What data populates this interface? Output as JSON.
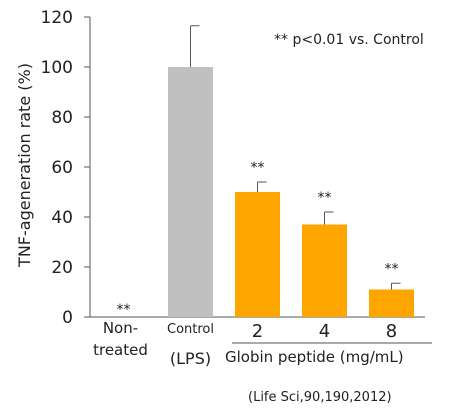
{
  "chart_data": {
    "type": "bar",
    "ylabel": "TNF-ageneration rate (%)",
    "ylim": [
      0,
      120
    ],
    "yticks": [
      "0",
      "20",
      "40",
      "60",
      "80",
      "100",
      "120"
    ],
    "grid": false,
    "note": "** p<0.01 vs. Control",
    "citation": "(Life Sci,90,190,2012)",
    "group_label": "Globin peptide (mg/mL)",
    "categories": [
      {
        "lines": [
          "Non-",
          "treated"
        ],
        "value": 0,
        "error": 0,
        "color": "#ffffff",
        "sig": "**"
      },
      {
        "lines": [
          "Control",
          "(LPS)"
        ],
        "value": 100,
        "error": 16.5,
        "color": "#c0c0c0",
        "sig": ""
      },
      {
        "lines": [
          "2"
        ],
        "value": 50,
        "error": 4,
        "color": "#ffa500",
        "sig": "**"
      },
      {
        "lines": [
          "4"
        ],
        "value": 37,
        "error": 5,
        "color": "#ffa500",
        "sig": "**"
      },
      {
        "lines": [
          "8"
        ],
        "value": 11,
        "error": 2.5,
        "color": "#ffa500",
        "sig": "**"
      }
    ]
  }
}
